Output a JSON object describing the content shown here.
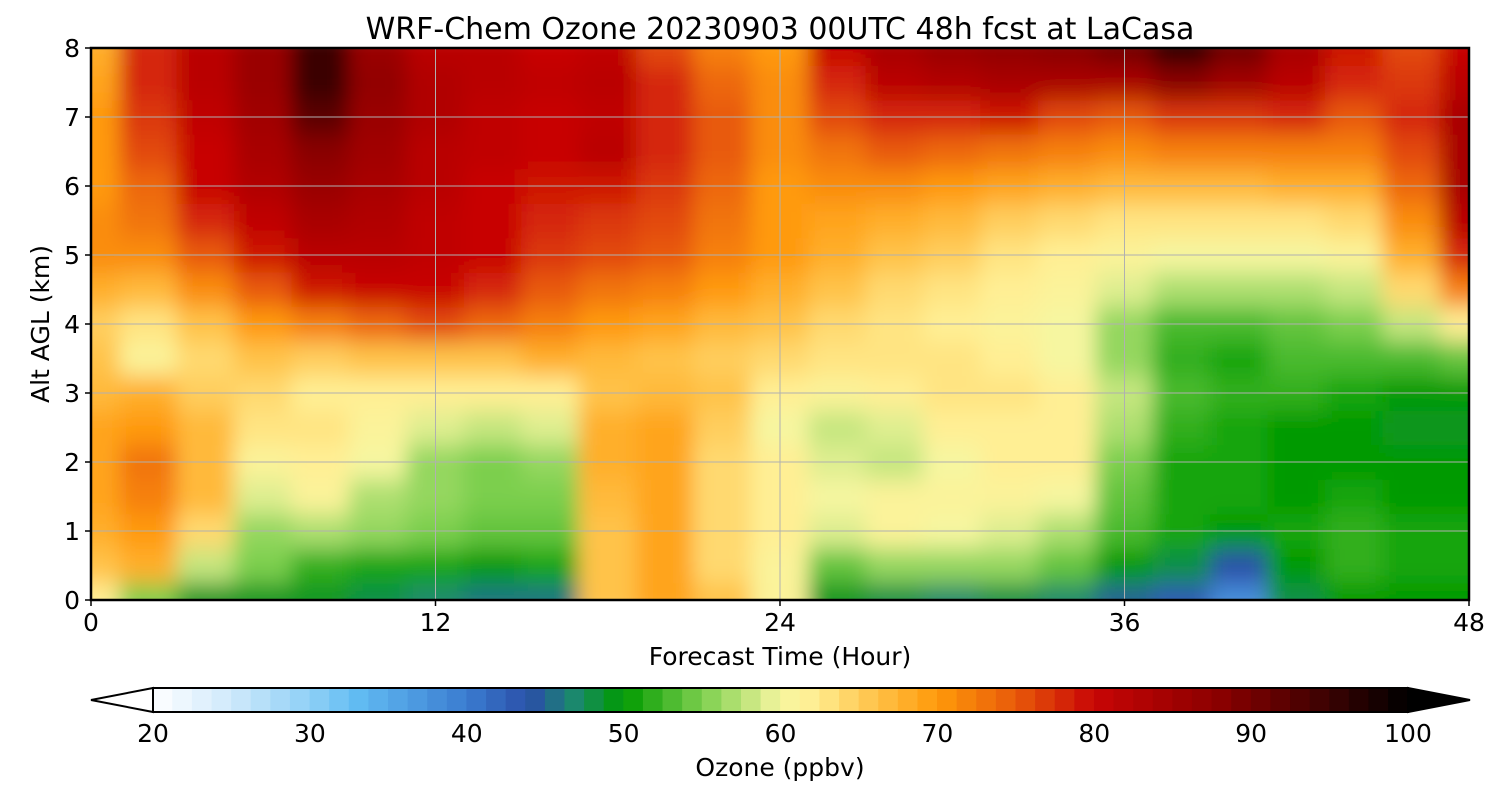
{
  "chart_data": {
    "type": "heatmap",
    "title": "WRF-Chem Ozone  20230903 00UTC 48h fcst at LaCasa",
    "xlabel": "Forecast Time (Hour)",
    "ylabel": "Alt AGL (km)",
    "xlim": [
      0,
      48
    ],
    "ylim": [
      0,
      8
    ],
    "xticks": [
      0,
      12,
      24,
      36,
      48
    ],
    "yticks": [
      0,
      1,
      2,
      3,
      4,
      5,
      6,
      7,
      8
    ],
    "grid": true,
    "x": [
      0,
      2,
      4,
      6,
      8,
      10,
      12,
      14,
      16,
      18,
      20,
      22,
      24,
      26,
      28,
      30,
      32,
      34,
      36,
      38,
      40,
      42,
      44,
      46,
      48
    ],
    "y": [
      0,
      0.5,
      1,
      1.5,
      2,
      2.5,
      3,
      3.5,
      4,
      4.5,
      5,
      5.5,
      6,
      6.5,
      7,
      7.5,
      8
    ],
    "z": [
      [
        62,
        55,
        49,
        49,
        49,
        48,
        47,
        46,
        46,
        66,
        69,
        66,
        61,
        49,
        48,
        47,
        48,
        47,
        45,
        43,
        38,
        48,
        50,
        50,
        50
      ],
      [
        66,
        68,
        58,
        55,
        52,
        51,
        51,
        50,
        51,
        66,
        69,
        64,
        61,
        54,
        56,
        56,
        56,
        54,
        50,
        48,
        44,
        50,
        52,
        51,
        51
      ],
      [
        68,
        70,
        64,
        56,
        57,
        56,
        55,
        54,
        54,
        66,
        69,
        64,
        62,
        59,
        61,
        60,
        59,
        57,
        53,
        51,
        50,
        51,
        52,
        51,
        51
      ],
      [
        69,
        72,
        67,
        59,
        61,
        57,
        56,
        55,
        55,
        67,
        69,
        64,
        62,
        60,
        61,
        61,
        61,
        60,
        54,
        51,
        51,
        50,
        51,
        50,
        50
      ],
      [
        69,
        73,
        67,
        61,
        62,
        60,
        56,
        55,
        56,
        68,
        69,
        64,
        62,
        59,
        58,
        60,
        62,
        62,
        55,
        51,
        51,
        50,
        50,
        50,
        50
      ],
      [
        69,
        70,
        67,
        63,
        63,
        61,
        59,
        58,
        59,
        68,
        69,
        65,
        60,
        58,
        59,
        62,
        62,
        62,
        57,
        52,
        51,
        50,
        50,
        49,
        49
      ],
      [
        67,
        68,
        65,
        64,
        62,
        62,
        62,
        62,
        62,
        66,
        67,
        66,
        62,
        61,
        62,
        63,
        63,
        62,
        58,
        53,
        52,
        52,
        51,
        50,
        50
      ],
      [
        66,
        61,
        64,
        66,
        65,
        66,
        66,
        66,
        68,
        67,
        66,
        65,
        64,
        63,
        63,
        63,
        62,
        60,
        56,
        52,
        51,
        53,
        53,
        53,
        54
      ],
      [
        65,
        63,
        66,
        70,
        72,
        74,
        76,
        74,
        72,
        70,
        69,
        67,
        66,
        64,
        63,
        62,
        61,
        60,
        56,
        53,
        53,
        54,
        55,
        58,
        62
      ],
      [
        68,
        67,
        71,
        75,
        79,
        80,
        80,
        78,
        75,
        73,
        72,
        70,
        68,
        66,
        64,
        63,
        62,
        61,
        59,
        57,
        57,
        57,
        58,
        64,
        72
      ],
      [
        71,
        71,
        75,
        79,
        82,
        82,
        81,
        80,
        77,
        76,
        75,
        72,
        70,
        68,
        66,
        65,
        63,
        62,
        61,
        60,
        60,
        60,
        61,
        68,
        78
      ],
      [
        71,
        73,
        78,
        81,
        84,
        83,
        81,
        80,
        78,
        77,
        76,
        73,
        70,
        69,
        68,
        67,
        65,
        64,
        63,
        63,
        63,
        63,
        64,
        71,
        82
      ],
      [
        70,
        74,
        80,
        83,
        86,
        84,
        82,
        80,
        79,
        79,
        77,
        74,
        70,
        71,
        71,
        70,
        69,
        68,
        67,
        67,
        67,
        68,
        68,
        74,
        84
      ],
      [
        70,
        76,
        80,
        84,
        88,
        85,
        82,
        81,
        80,
        82,
        78,
        75,
        71,
        73,
        75,
        74,
        73,
        72,
        71,
        72,
        72,
        72,
        72,
        76,
        84
      ],
      [
        70,
        77,
        81,
        85,
        92,
        86,
        83,
        81,
        80,
        81,
        78,
        75,
        71,
        76,
        78,
        78,
        79,
        76,
        75,
        77,
        77,
        78,
        75,
        78,
        84
      ],
      [
        69,
        78,
        82,
        86,
        95,
        87,
        83,
        82,
        81,
        82,
        78,
        74,
        71,
        78,
        82,
        83,
        84,
        84,
        84,
        88,
        85,
        82,
        78,
        77,
        82
      ],
      [
        68,
        78,
        82,
        86,
        95,
        86,
        82,
        82,
        80,
        81,
        76,
        72,
        70,
        80,
        84,
        86,
        87,
        88,
        90,
        96,
        90,
        84,
        79,
        76,
        80
      ]
    ],
    "colorbar": {
      "label": "Ozone  (ppbv)",
      "min": 20,
      "max": 100,
      "ticks": [
        20,
        30,
        40,
        50,
        60,
        70,
        80,
        90,
        100
      ],
      "extend": "both",
      "colors": [
        {
          "v": 20,
          "c": "#ffffff"
        },
        {
          "v": 25,
          "c": "#cfe9fb"
        },
        {
          "v": 30,
          "c": "#8fd0f6"
        },
        {
          "v": 33,
          "c": "#62bcf3"
        },
        {
          "v": 40,
          "c": "#3b7cd0"
        },
        {
          "v": 44,
          "c": "#2a4fa8"
        },
        {
          "v": 47,
          "c": "#1a8a6a"
        },
        {
          "v": 50,
          "c": "#009a00"
        },
        {
          "v": 55,
          "c": "#7ccf4e"
        },
        {
          "v": 60,
          "c": "#f6f6a0"
        },
        {
          "v": 62,
          "c": "#ffef94"
        },
        {
          "v": 66,
          "c": "#ffc34a"
        },
        {
          "v": 70,
          "c": "#ff9a0a"
        },
        {
          "v": 75,
          "c": "#e85a0a"
        },
        {
          "v": 80,
          "c": "#c80505"
        },
        {
          "v": 88,
          "c": "#8a0000"
        },
        {
          "v": 95,
          "c": "#3a0202"
        },
        {
          "v": 100,
          "c": "#000000"
        }
      ]
    }
  }
}
